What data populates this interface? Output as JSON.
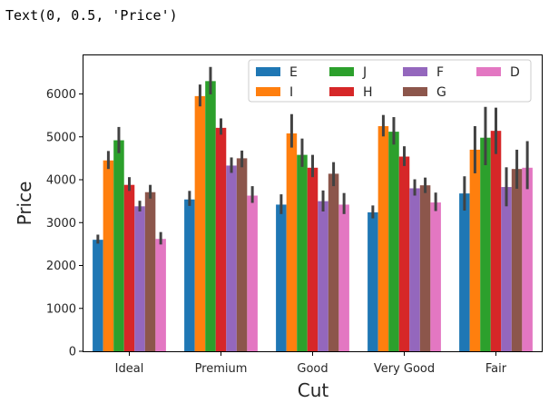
{
  "output_text": "Text(0, 0.5, 'Price')",
  "chart_data": {
    "type": "bar",
    "xlabel": "Cut",
    "ylabel": "Price",
    "ylim": [
      0,
      6900
    ],
    "yticks": [
      0,
      1000,
      2000,
      3000,
      4000,
      5000,
      6000
    ],
    "categories": [
      "Ideal",
      "Premium",
      "Good",
      "Very Good",
      "Fair"
    ],
    "grid": false,
    "legend_position": "top-right",
    "legend_columns": 4,
    "series": [
      {
        "name": "E",
        "color": "#1f77b4",
        "values": [
          2600,
          3540,
          3420,
          3240,
          3680
        ],
        "err_low": [
          2510,
          3390,
          3200,
          3100,
          3280
        ],
        "err_high": [
          2720,
          3740,
          3660,
          3400,
          4080
        ]
      },
      {
        "name": "I",
        "color": "#ff7f0e",
        "values": [
          4450,
          5950,
          5080,
          5250,
          4700
        ],
        "err_low": [
          4250,
          5710,
          4750,
          5010,
          4150
        ],
        "err_high": [
          4670,
          6220,
          5530,
          5510,
          5250
        ]
      },
      {
        "name": "J",
        "color": "#2ca02c",
        "values": [
          4920,
          6300,
          4580,
          5120,
          4980
        ],
        "err_low": [
          4620,
          5990,
          4300,
          4820,
          4340
        ],
        "err_high": [
          5230,
          6630,
          4960,
          5460,
          5700
        ]
      },
      {
        "name": "H",
        "color": "#d62728",
        "values": [
          3880,
          5210,
          4280,
          4540,
          5140
        ],
        "err_low": [
          3740,
          5050,
          4060,
          4320,
          4600
        ],
        "err_high": [
          4060,
          5430,
          4580,
          4780,
          5680
        ]
      },
      {
        "name": "F",
        "color": "#9467bd",
        "values": [
          3380,
          4330,
          3500,
          3800,
          3830
        ],
        "err_low": [
          3260,
          4160,
          3260,
          3630,
          3380
        ],
        "err_high": [
          3510,
          4520,
          3750,
          4010,
          4290
        ]
      },
      {
        "name": "G",
        "color": "#8c564b",
        "values": [
          3710,
          4500,
          4140,
          3870,
          4250
        ],
        "err_low": [
          3560,
          4290,
          3850,
          3690,
          3790
        ],
        "err_high": [
          3880,
          4680,
          4410,
          4050,
          4700
        ]
      },
      {
        "name": "D",
        "color": "#e377c2",
        "values": [
          2620,
          3630,
          3420,
          3470,
          4280
        ],
        "err_low": [
          2490,
          3460,
          3200,
          3270,
          3780
        ],
        "err_high": [
          2780,
          3850,
          3690,
          3700,
          4900
        ]
      }
    ],
    "legend_order": [
      "E",
      "J",
      "F",
      "D",
      "I",
      "H",
      "G"
    ]
  }
}
